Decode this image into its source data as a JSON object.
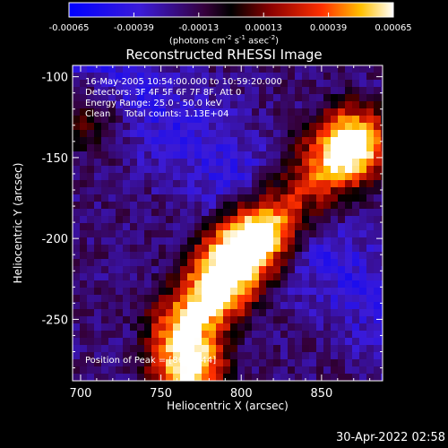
{
  "chart_data": {
    "type": "heatmap",
    "title": "Reconstructed RHESSI Image",
    "xlabel": "Heliocentric X (arcsec)",
    "ylabel": "Heliocentric Y (arcsec)",
    "xlim": [
      695,
      888
    ],
    "ylim": [
      -288,
      -93
    ],
    "xticks": [
      700,
      750,
      800,
      850
    ],
    "yticks": [
      -100,
      -150,
      -200,
      -250
    ],
    "colorbar": {
      "range": [
        -0.00065,
        0.00065
      ],
      "tick_labels": [
        "-0.00065",
        "-0.00039",
        "-0.00013",
        "0.00013",
        "0.00039",
        "0.00065"
      ],
      "unit_label_parts": [
        "(photons cm",
        "-2",
        " s",
        "-1",
        " asec",
        "-2",
        ")"
      ]
    },
    "annotations": [
      "16-May-2005 10:54:00.000 to 10:59:20.000",
      "Detectors: 3F 4F 5F 6F 7F 8F, Att 0",
      "Energy Range: 25.0 - 50.0 keV",
      "Clean     Total counts: 1.13E+04"
    ],
    "peak_label": "Position of Peak = [867,-144]",
    "peak": [
      867,
      -144
    ],
    "ridge": [
      {
        "x": 870,
        "y": -140
      },
      {
        "x": 845,
        "y": -165
      },
      {
        "x": 820,
        "y": -190
      },
      {
        "x": 800,
        "y": -210
      },
      {
        "x": 780,
        "y": -235
      },
      {
        "x": 770,
        "y": -255
      },
      {
        "x": 765,
        "y": -280
      }
    ],
    "bright_spots": [
      {
        "x": 867,
        "y": -144,
        "level": 1.0
      },
      {
        "x": 800,
        "y": -205,
        "level": 0.85
      },
      {
        "x": 787,
        "y": -228,
        "level": 0.8
      },
      {
        "x": 815,
        "y": -195,
        "level": 0.7
      },
      {
        "x": 770,
        "y": -280,
        "level": 0.6
      },
      {
        "x": 760,
        "y": -255,
        "level": 0.55
      },
      {
        "x": 705,
        "y": -125,
        "level": 0.5
      }
    ]
  },
  "timestamp": "30-Apr-2022 02:58"
}
